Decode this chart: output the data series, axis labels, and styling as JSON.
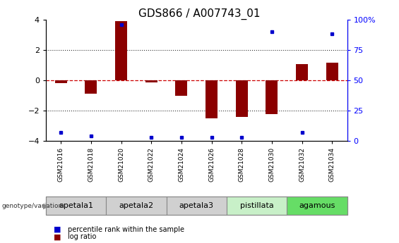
{
  "title": "GDS866 / A007743_01",
  "samples": [
    "GSM21016",
    "GSM21018",
    "GSM21020",
    "GSM21022",
    "GSM21024",
    "GSM21026",
    "GSM21028",
    "GSM21030",
    "GSM21032",
    "GSM21034"
  ],
  "log_ratios": [
    -0.2,
    -0.9,
    3.9,
    -0.15,
    -1.05,
    -2.5,
    -2.4,
    -2.25,
    1.05,
    1.15
  ],
  "percentile_ranks": [
    7,
    4,
    96,
    3,
    3,
    3,
    3,
    90,
    7,
    88
  ],
  "ylim_left": [
    -4,
    4
  ],
  "ylim_right": [
    0,
    100
  ],
  "yticks_left": [
    -4,
    -2,
    0,
    2,
    4
  ],
  "yticks_right": [
    0,
    25,
    50,
    75,
    100
  ],
  "ytick_right_labels": [
    "0",
    "25",
    "50",
    "75",
    "100%"
  ],
  "groups": [
    {
      "name": "apetala1",
      "indices": [
        0,
        1
      ],
      "color": "#d0d0d0"
    },
    {
      "name": "apetala2",
      "indices": [
        2,
        3
      ],
      "color": "#d0d0d0"
    },
    {
      "name": "apetala3",
      "indices": [
        4,
        5
      ],
      "color": "#d0d0d0"
    },
    {
      "name": "pistillata",
      "indices": [
        6,
        7
      ],
      "color": "#c8f0c8"
    },
    {
      "name": "agamous",
      "indices": [
        8,
        9
      ],
      "color": "#66dd66"
    }
  ],
  "bar_color": "#8B0000",
  "dot_color": "#0000CC",
  "zero_line_color": "#cc0000",
  "dotted_line_color": "#333333",
  "background_color": "#ffffff",
  "title_fontsize": 11,
  "tick_fontsize": 7,
  "sample_fontsize": 6.5
}
